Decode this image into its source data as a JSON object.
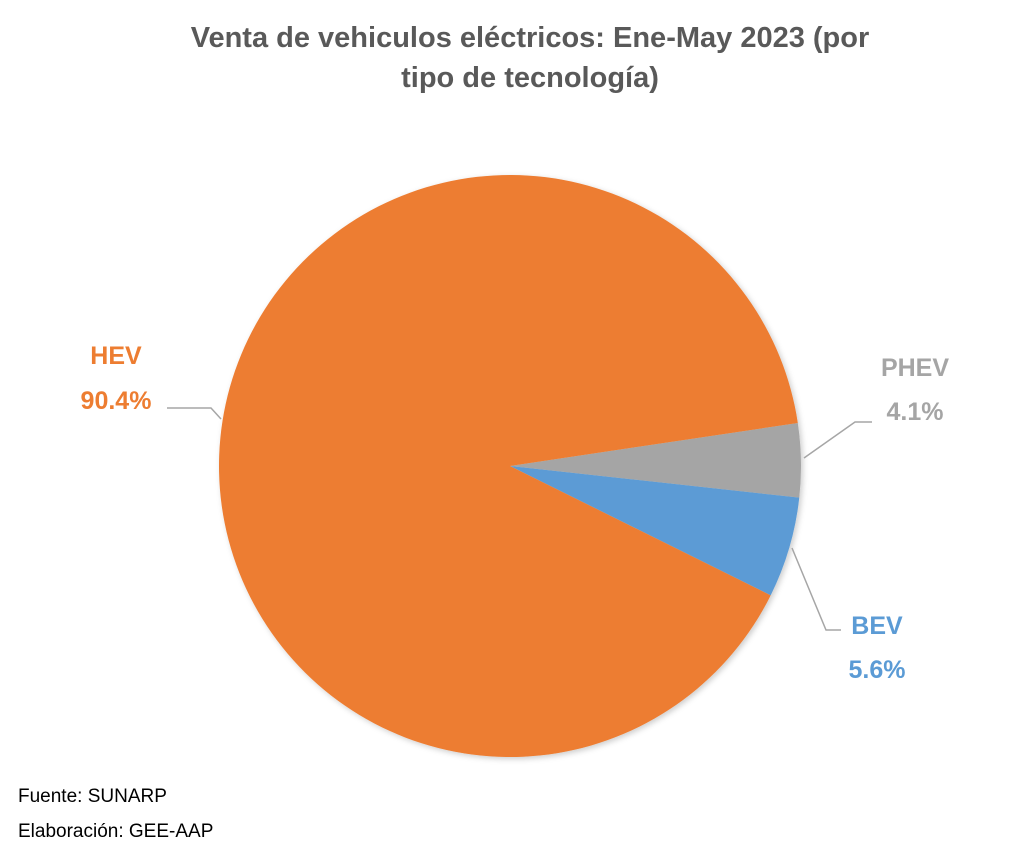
{
  "chart_data": {
    "type": "pie",
    "title": "Venta de vehiculos eléctricos: Ene-May 2023 (por tipo de tecnología)",
    "title_lines": [
      "Venta de vehiculos eléctricos: Ene-May 2023 (por",
      "tipo de tecnología)"
    ],
    "slices": [
      {
        "name": "PHEV",
        "value": 4.1,
        "label": "4.1%",
        "color": "#A5A5A5"
      },
      {
        "name": "BEV",
        "value": 5.6,
        "label": "5.6%",
        "color": "#5B9BD5"
      },
      {
        "name": "HEV",
        "value": 90.4,
        "label": "90.4%",
        "color": "#ED7D31"
      }
    ],
    "legend": "none"
  },
  "footer": {
    "source": "Fuente: SUNARP",
    "elaboration": "Elaboración: GEE-AAP"
  }
}
